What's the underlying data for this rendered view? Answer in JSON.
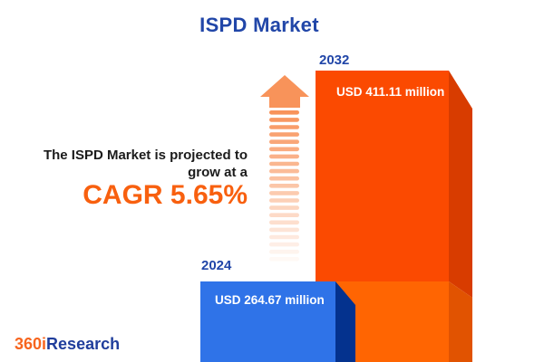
{
  "header": {
    "title": "ISPD Market"
  },
  "projection": {
    "line1": "The ISPD Market is projected to",
    "line2": "grow at a",
    "cagr": "CAGR 5.65%"
  },
  "bars": {
    "base_year": {
      "year": "2024",
      "value_label": "USD 264.67 million"
    },
    "forecast_year": {
      "year": "2032",
      "value_label": "USD 411.11 million"
    }
  },
  "logo": {
    "prefix": "360i",
    "suffix": "Research"
  },
  "colors": {
    "title-blue": "#2146A8",
    "text-dark": "#1B1B1B",
    "cagr-orange": "#F8600F",
    "bar-orange-top": "#FB4A01",
    "bar-orange-bottom": "#FF6502",
    "bar-orange-side-top": "#D83C00",
    "bar-orange-side-bottom": "#E15301",
    "bar-blue": "#2F73E8",
    "bar-blue-side": "#04328E",
    "arrow": "#F8935A",
    "logo-orange": "#F7651E",
    "logo-blue": "#203E9C",
    "value-text": "#FFFFFF"
  },
  "chart_data": {
    "type": "bar",
    "title": "ISPD Market",
    "categories": [
      "2024",
      "2032"
    ],
    "values": [
      264.67,
      411.11
    ],
    "value_labels": [
      "USD 264.67 million",
      "USD 411.11 million"
    ],
    "unit": "USD million",
    "cagr_percent": 5.65,
    "annotation": "The ISPD Market is projected to grow at a CAGR 5.65%",
    "series_colors": [
      "#2F73E8",
      "#FB4A01"
    ],
    "legend": "none",
    "grid": "off",
    "axes": "hidden",
    "bar_style": "3d-extruded, bars cropped at bottom edge"
  }
}
